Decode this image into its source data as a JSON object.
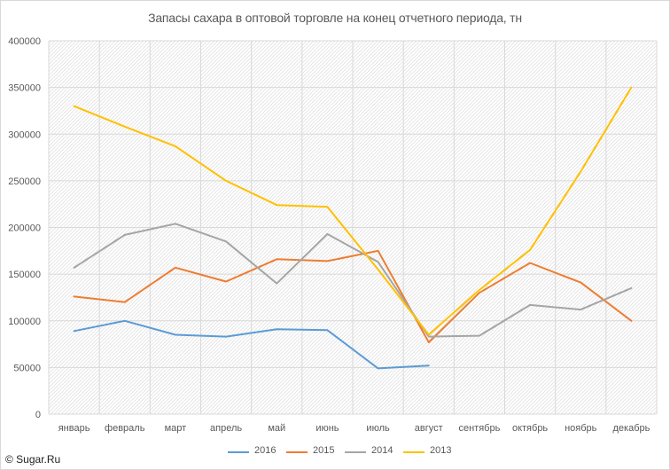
{
  "chart_data": {
    "type": "line",
    "title": "Запасы сахара в оптовой торговле на конец отчетного периода, тн",
    "xlabel": "",
    "ylabel": "",
    "categories": [
      "январь",
      "февраль",
      "март",
      "апрель",
      "май",
      "июнь",
      "июль",
      "август",
      "сентябрь",
      "октябрь",
      "ноябрь",
      "декабрь"
    ],
    "ylim": [
      0,
      400000
    ],
    "yticks": [
      0,
      50000,
      100000,
      150000,
      200000,
      250000,
      300000,
      350000,
      400000
    ],
    "grid": true,
    "legend_position": "bottom",
    "series": [
      {
        "name": "2016",
        "color": "#5b9bd5",
        "values": [
          89000,
          100000,
          85000,
          83000,
          91000,
          90000,
          49000,
          52000,
          null,
          null,
          null,
          null
        ]
      },
      {
        "name": "2015",
        "color": "#ed7d31",
        "values": [
          126000,
          120000,
          157000,
          142000,
          166000,
          164000,
          175000,
          77000,
          130000,
          162000,
          141000,
          100000
        ]
      },
      {
        "name": "2014",
        "color": "#a5a5a5",
        "values": [
          157000,
          192000,
          204000,
          185000,
          140000,
          193000,
          163000,
          83000,
          84000,
          117000,
          112000,
          135000
        ]
      },
      {
        "name": "2013",
        "color": "#ffc000",
        "values": [
          330000,
          308000,
          287000,
          250000,
          224000,
          222000,
          155000,
          85000,
          133000,
          176000,
          260000,
          350000
        ]
      }
    ]
  },
  "watermark": "© Sugar.Ru"
}
